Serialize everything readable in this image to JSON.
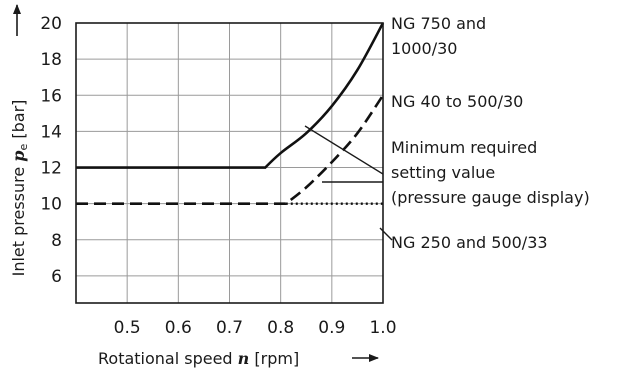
{
  "chart_data": {
    "type": "line",
    "xlabel": {
      "pre": "Rotational speed ",
      "var": "n",
      "post": " [rpm]"
    },
    "ylabel": {
      "pre": "Inlet pressure ",
      "var": "p",
      "sub": "e",
      "post": " [bar]"
    },
    "xlim": [
      0.4,
      1.0
    ],
    "ylim": [
      4.5,
      20
    ],
    "x_ticks": [
      "0.5",
      "0.6",
      "0.7",
      "0.8",
      "0.9",
      "1.0"
    ],
    "x_tick_values": [
      0.5,
      0.6,
      0.7,
      0.8,
      0.9,
      1.0
    ],
    "y_ticks": [
      "6",
      "8",
      "10",
      "12",
      "14",
      "16",
      "18",
      "20"
    ],
    "y_tick_values": [
      6,
      8,
      10,
      12,
      14,
      16,
      18,
      20
    ],
    "grid": true,
    "series": [
      {
        "style": "solid",
        "x": [
          0.4,
          0.77,
          0.8,
          0.85,
          0.9,
          0.95,
          1.0
        ],
        "y": [
          12,
          12,
          12.8,
          13.9,
          15.4,
          17.4,
          20
        ]
      },
      {
        "style": "dashed",
        "x": [
          0.4,
          0.81,
          0.85,
          0.9,
          0.95,
          1.0
        ],
        "y": [
          10,
          10,
          10.9,
          12.3,
          13.9,
          16
        ]
      },
      {
        "style": "dotted",
        "x": [
          0.81,
          1.0
        ],
        "y": [
          10,
          10
        ]
      }
    ],
    "annotations": [
      {
        "id": "ng750",
        "lines": [
          "NG 750 and",
          "1000/30"
        ]
      },
      {
        "id": "ng40",
        "lines": [
          "NG 40 to 500/30"
        ]
      },
      {
        "id": "min",
        "lines": [
          "Minimum required",
          "setting value",
          "(pressure gauge display)"
        ]
      },
      {
        "id": "ng250",
        "lines": [
          "NG 250 and 500/33"
        ]
      }
    ]
  }
}
